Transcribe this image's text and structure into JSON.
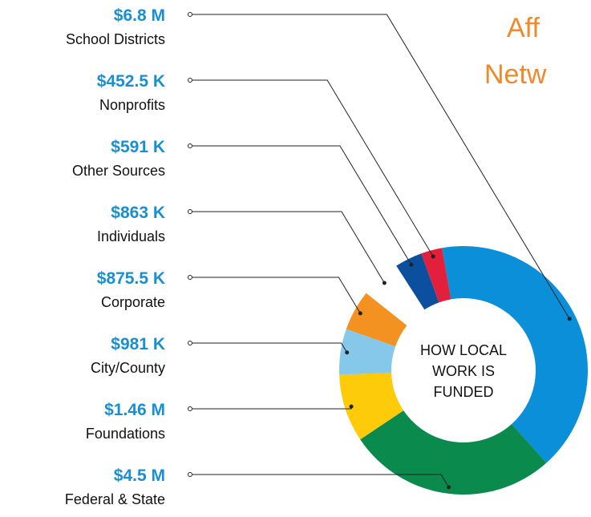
{
  "chart_data": {
    "type": "donut",
    "title_lines": [
      "Aff",
      "Netw"
    ],
    "center_label": [
      "HOW LOCAL",
      "WORK IS",
      "FUNDED"
    ],
    "categories": [
      "School Districts",
      "Nonprofits",
      "Other Sources",
      "Individuals",
      "Corporate",
      "City/County",
      "Foundations",
      "Federal & State"
    ],
    "values": [
      6800000,
      452500,
      591000,
      863000,
      875500,
      981000,
      1460000,
      4500000
    ],
    "value_labels": [
      "$6.8 M",
      "$452.5 K",
      "$591 K",
      "$863 K",
      "$875.5 K",
      "$981 K",
      "$1.46 M",
      "$4.5 M"
    ],
    "colors": [
      "#0a8fd8",
      "#e2203c",
      "#0b4f9e",
      "#ffffff",
      "#f39221",
      "#86c8ea",
      "#fdcb0a",
      "#0b8a4e"
    ],
    "ring_order": [
      0,
      7,
      6,
      5,
      4,
      3,
      2,
      1
    ]
  }
}
